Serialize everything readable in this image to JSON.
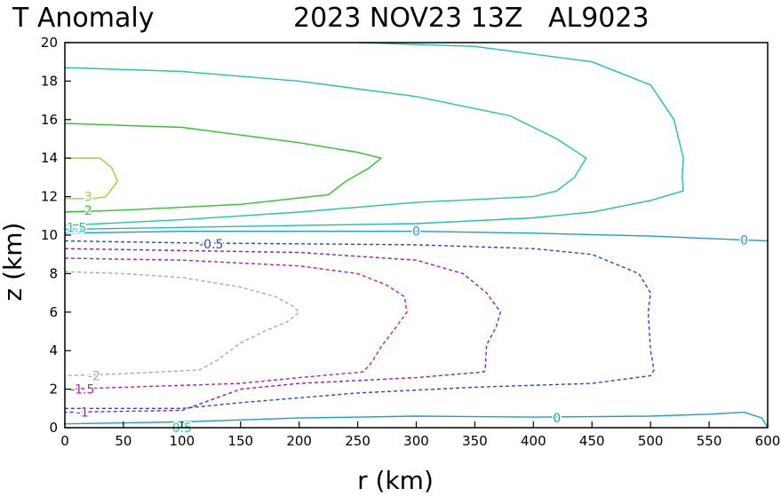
{
  "chart_data": {
    "type": "line",
    "title_left": "T Anomaly",
    "title_right": "2023 NOV23 13Z   AL9023",
    "xlabel": "r (km)",
    "ylabel": "z (km)",
    "xlim": [
      0,
      600
    ],
    "ylim": [
      0,
      20
    ],
    "xticks": [
      "0",
      "50",
      "100",
      "150",
      "200",
      "250",
      "300",
      "350",
      "400",
      "450",
      "500",
      "550",
      "600"
    ],
    "yticks": [
      "0",
      "2",
      "4",
      "6",
      "8",
      "10",
      "12",
      "14",
      "16",
      "18",
      "20"
    ],
    "grid": false,
    "legend": "none",
    "series": [
      {
        "name": "3",
        "color": "#96d23c",
        "dashed": false,
        "x": [
          0,
          30,
          40,
          45,
          35,
          25,
          0
        ],
        "y": [
          14.0,
          14.0,
          13.5,
          12.8,
          12.0,
          11.9,
          11.9
        ]
      },
      {
        "name": "2",
        "color": "#28c828",
        "dashed": false,
        "x": [
          0,
          100,
          200,
          250,
          270,
          260,
          240,
          225,
          150,
          50,
          0
        ],
        "y": [
          15.8,
          15.6,
          14.8,
          14.3,
          14.0,
          13.5,
          12.8,
          12.1,
          11.6,
          11.3,
          11.2
        ]
      },
      {
        "name": "1.5",
        "color": "#1ec8a0",
        "dashed": false,
        "x": [
          0,
          100,
          200,
          300,
          380,
          420,
          445,
          435,
          420,
          400,
          300,
          200,
          100,
          0
        ],
        "y": [
          18.7,
          18.5,
          18.0,
          17.2,
          16.2,
          15.0,
          14.0,
          13.0,
          12.3,
          12.0,
          11.7,
          11.2,
          10.8,
          10.5
        ]
      },
      {
        "name": "1",
        "color": "#1ebeb4",
        "dashed": false,
        "x": [
          250,
          350,
          450,
          500,
          520,
          528,
          527,
          528,
          500,
          450,
          400,
          300,
          200,
          100,
          0
        ],
        "y": [
          20.0,
          19.8,
          19.0,
          17.8,
          16.0,
          14.0,
          13.0,
          12.3,
          11.8,
          11.2,
          10.9,
          10.6,
          10.5,
          10.4,
          10.3
        ]
      },
      {
        "name": "0",
        "color": "#1e9bd2",
        "dashed": false,
        "x": [
          0,
          100,
          200,
          300,
          400,
          500,
          580,
          600
        ],
        "y": [
          10.1,
          10.2,
          10.2,
          10.2,
          10.1,
          9.95,
          9.75,
          9.7
        ]
      },
      {
        "name": "-0.5",
        "color": "#2846c8",
        "dashed": true,
        "x": [
          0,
          100,
          200,
          300,
          400,
          450,
          490,
          500,
          498,
          500,
          503,
          500,
          450,
          350,
          250,
          150,
          100,
          0
        ],
        "y": [
          9.7,
          9.6,
          9.55,
          9.5,
          9.3,
          9.0,
          8.0,
          7.0,
          6.0,
          4.0,
          3.0,
          2.7,
          2.3,
          2.1,
          1.8,
          1.3,
          1.0,
          1.0
        ]
      },
      {
        "name": "-1",
        "color": "#8c1eb4",
        "dashed": true,
        "x": [
          0,
          100,
          200,
          300,
          340,
          360,
          372,
          368,
          360,
          359,
          358,
          300,
          200,
          150,
          100,
          0
        ],
        "y": [
          9.3,
          9.2,
          9.1,
          8.7,
          8.0,
          7.0,
          6.0,
          5.2,
          4.3,
          3.2,
          2.9,
          2.6,
          2.3,
          2.0,
          0.9,
          0.8
        ]
      },
      {
        "name": "-1.5",
        "color": "#b41eb4",
        "dashed": true,
        "x": [
          0,
          100,
          200,
          250,
          275,
          290,
          292,
          280,
          270,
          262,
          255,
          200,
          150,
          100,
          0
        ],
        "y": [
          8.8,
          8.7,
          8.4,
          8.0,
          7.4,
          6.8,
          6.0,
          5.0,
          4.2,
          3.4,
          2.9,
          2.6,
          2.3,
          2.2,
          2.0
        ]
      },
      {
        "name": "-2",
        "color": "#aaaaaa",
        "dashed": true,
        "x": [
          0,
          50,
          100,
          150,
          180,
          195,
          200,
          190,
          170,
          150,
          130,
          115,
          50,
          0
        ],
        "y": [
          8.1,
          8.0,
          7.8,
          7.3,
          6.8,
          6.3,
          6.0,
          5.5,
          5.0,
          4.4,
          3.5,
          3.0,
          2.8,
          2.7
        ]
      },
      {
        "name": "0",
        "color": "#1e9bd2",
        "dashed": false,
        "x": [
          0,
          100,
          200,
          300,
          400,
          500,
          550,
          580,
          595,
          600
        ],
        "y": [
          0.2,
          0.3,
          0.5,
          0.6,
          0.55,
          0.6,
          0.7,
          0.8,
          0.5,
          0.0
        ]
      }
    ],
    "contour_labels": [
      {
        "text": "3",
        "color": "#96d23c",
        "x": 20,
        "y": 12.0
      },
      {
        "text": "2",
        "color": "#28c828",
        "x": 20,
        "y": 11.3
      },
      {
        "text": "1.5",
        "color": "#1ec8a0",
        "x": 10,
        "y": 10.4
      },
      {
        "text": "0",
        "color": "#1e9bd2",
        "x": 300,
        "y": 10.2
      },
      {
        "text": "0",
        "color": "#1e9bd2",
        "x": 580,
        "y": 9.75
      },
      {
        "text": "-0.5",
        "color": "#2846c8",
        "x": 125,
        "y": 9.55
      },
      {
        "text": "-1.5",
        "color": "#b41eb4",
        "x": 15,
        "y": 2.0
      },
      {
        "text": "-1",
        "color": "#8c1eb4",
        "x": 15,
        "y": 0.8
      },
      {
        "text": "-2",
        "color": "#aaaaaa",
        "x": 25,
        "y": 2.7
      },
      {
        "text": "0",
        "color": "#1e9bd2",
        "x": 420,
        "y": 0.5
      },
      {
        "text": "0.5",
        "color": "#1ec8a0",
        "x": 100,
        "y": 0.0
      }
    ]
  }
}
